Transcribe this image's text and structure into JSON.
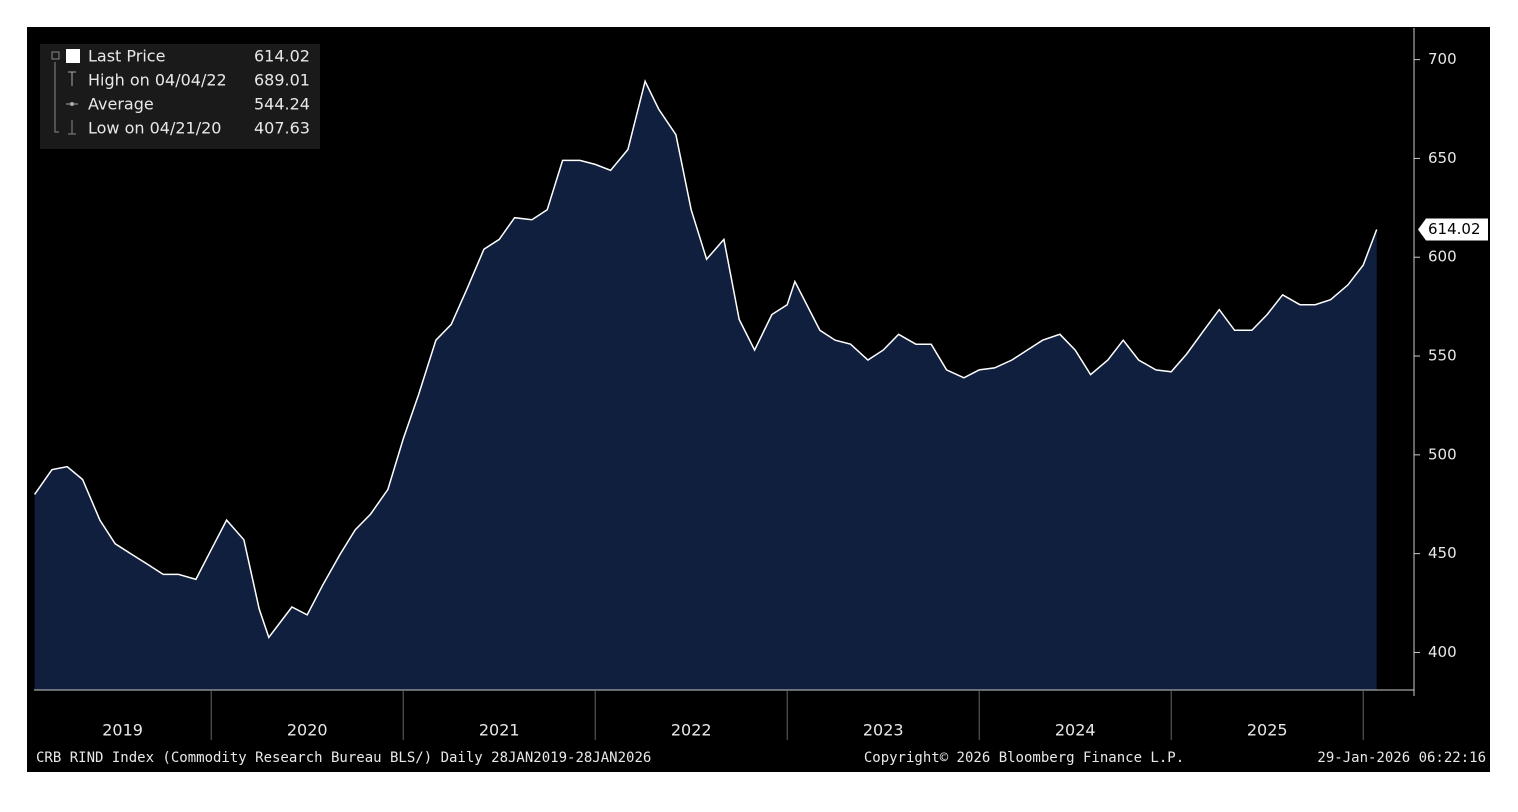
{
  "chart_data": {
    "type": "area",
    "legend": [
      {
        "label": "Last Price",
        "value": 614.02
      },
      {
        "label": "High on 04/04/22",
        "value": 689.01
      },
      {
        "label": "Average",
        "value": 544.24
      },
      {
        "label": "Low on 04/21/20",
        "value": 407.63
      }
    ],
    "footer_left": "CRB RIND Index (Commodity Research Bureau BLS/) Daily 28JAN2019-28JAN2026",
    "footer_center": "Copyright© 2026 Bloomberg Finance L.P.",
    "footer_right": "29-Jan-2026 06:22:16",
    "year_labels": [
      "2019",
      "2020",
      "2021",
      "2022",
      "2023",
      "2024",
      "2025"
    ],
    "year_boundaries": [
      2020,
      2021,
      2022,
      2023,
      2024,
      2025,
      2026
    ],
    "color": "#0f1f3d",
    "line_color": "#ffffff",
    "xlim": [
      2019.077,
      2026.077
    ],
    "ylim": [
      381,
      716
    ],
    "yticks": [
      400,
      450,
      500,
      550,
      600,
      650,
      700
    ],
    "x": [
      2019.08,
      2019.17,
      2019.25,
      2019.33,
      2019.42,
      2019.5,
      2019.58,
      2019.67,
      2019.75,
      2019.83,
      2019.92,
      2020.0,
      2020.08,
      2020.17,
      2020.25,
      2020.3,
      2020.42,
      2020.5,
      2020.58,
      2020.67,
      2020.75,
      2020.83,
      2020.92,
      2021.0,
      2021.08,
      2021.17,
      2021.25,
      2021.33,
      2021.42,
      2021.5,
      2021.58,
      2021.67,
      2021.75,
      2021.83,
      2021.92,
      2022.0,
      2022.08,
      2022.17,
      2022.26,
      2022.33,
      2022.42,
      2022.5,
      2022.58,
      2022.67,
      2022.75,
      2022.83,
      2022.92,
      2023.0,
      2023.04,
      2023.17,
      2023.25,
      2023.33,
      2023.42,
      2023.5,
      2023.58,
      2023.67,
      2023.75,
      2023.83,
      2023.92,
      2024.0,
      2024.08,
      2024.17,
      2024.25,
      2024.33,
      2024.42,
      2024.5,
      2024.58,
      2024.67,
      2024.75,
      2024.83,
      2024.92,
      2025.0,
      2025.08,
      2025.17,
      2025.25,
      2025.33,
      2025.42,
      2025.5,
      2025.58,
      2025.67,
      2025.75,
      2025.83,
      2025.92,
      2026.0,
      2026.07
    ],
    "values": [
      480,
      492.5,
      494,
      487.5,
      467,
      455,
      450,
      444.5,
      439.5,
      439.5,
      437,
      452,
      467,
      457,
      422,
      407.63,
      423,
      419,
      434,
      449.5,
      462,
      470,
      482.5,
      508,
      530.5,
      558,
      566,
      583.5,
      604,
      609,
      620,
      619,
      624,
      649,
      649,
      647,
      644,
      654.5,
      689.01,
      675,
      662,
      624,
      599,
      609,
      568.5,
      553,
      571,
      576,
      587.7,
      563,
      558,
      556,
      548,
      553,
      561,
      556,
      556,
      543,
      539,
      543,
      544,
      548,
      553,
      558,
      561,
      553,
      540.6,
      548,
      558,
      548,
      543,
      542,
      551,
      563,
      573.5,
      563,
      563,
      571,
      581,
      576,
      576,
      578.5,
      586,
      596,
      614.02
    ]
  }
}
